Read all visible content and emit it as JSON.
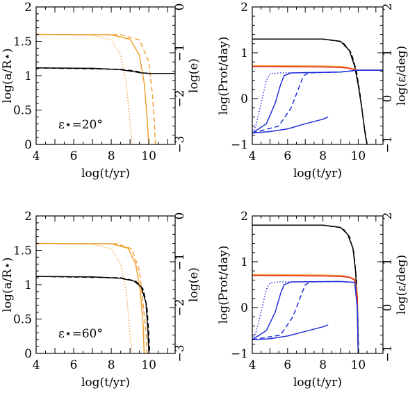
{
  "figure": {
    "colors": {
      "orange": "#f0a030",
      "black": "#000000",
      "blue": "#1f2fd8",
      "red": "#e8261c"
    },
    "panels": [
      {
        "id": "top-left",
        "annotation": "ε⋆=20°",
        "chart_data": {
          "type": "line",
          "xlabel": "log(t/yr)",
          "ylabel": "log(a/R⋆)",
          "y2label": "log(e)",
          "xlim": [
            4,
            11.4
          ],
          "ylim": [
            0,
            2
          ],
          "y2lim": [
            -3,
            0
          ],
          "xticks": [
            4,
            6,
            8,
            10
          ],
          "yticks": [
            0,
            0.5,
            1,
            1.5,
            2
          ],
          "y2ticks": [
            -3,
            -2,
            -1,
            0
          ],
          "series": [
            {
              "name": "a-dotted",
              "color": "orange",
              "style": "dotted",
              "axis": "y",
              "x": [
                4,
                7.0,
                8.0,
                8.5,
                8.8,
                9.0,
                9.1
              ],
              "y": [
                1.6,
                1.59,
                1.52,
                1.3,
                0.9,
                0.3,
                0
              ]
            },
            {
              "name": "a-solid",
              "color": "orange",
              "style": "solid",
              "axis": "y",
              "x": [
                4,
                8.0,
                9.0,
                9.5,
                9.75,
                9.9,
                10.0
              ],
              "y": [
                1.6,
                1.595,
                1.53,
                1.3,
                0.9,
                0.4,
                0
              ]
            },
            {
              "name": "a-dashed",
              "color": "orange",
              "style": "dashed",
              "axis": "y",
              "x": [
                4,
                8.5,
                9.5,
                10.0,
                10.2,
                10.3,
                10.35
              ],
              "y": [
                1.6,
                1.595,
                1.52,
                1.2,
                0.7,
                0.3,
                0
              ]
            },
            {
              "name": "e-solid",
              "color": "black",
              "style": "solid",
              "axis": "y2",
              "x": [
                4,
                7,
                8.5,
                9.2,
                9.6,
                10.0,
                11.4
              ],
              "y": [
                -1.33,
                -1.34,
                -1.37,
                -1.41,
                -1.44,
                -1.45,
                -1.45
              ]
            },
            {
              "name": "e-dashed",
              "color": "black",
              "style": "dashed",
              "axis": "y2",
              "x": [
                4,
                8.5,
                9.3,
                9.7,
                10.0,
                11.4
              ],
              "y": [
                -1.33,
                -1.36,
                -1.4,
                -1.44,
                -1.45,
                -1.45
              ]
            }
          ]
        }
      },
      {
        "id": "top-right",
        "chart_data": {
          "type": "line",
          "xlabel": "log(t/yr)",
          "ylabel": "log(Prot/day)",
          "y2label": "log(ε/deg)",
          "xlim": [
            4,
            11.4
          ],
          "ylim": [
            -1,
            2
          ],
          "y2lim": [
            -1,
            2
          ],
          "xticks": [
            4,
            6,
            8,
            10
          ],
          "yticks": [
            -1,
            0,
            1,
            2
          ],
          "y2ticks": [
            -1,
            0,
            1,
            2
          ],
          "series": [
            {
              "name": "prot-solid",
              "color": "black",
              "style": "solid",
              "axis": "y",
              "x": [
                4,
                8,
                9.0,
                9.5,
                9.8,
                10.0,
                10.2,
                10.4,
                10.5
              ],
              "y": [
                1.3,
                1.3,
                1.25,
                1.05,
                0.7,
                0.3,
                -0.2,
                -0.8,
                -1
              ]
            },
            {
              "name": "prot-dashed",
              "color": "black",
              "style": "dashed",
              "axis": "y",
              "x": [
                4,
                8,
                9.1,
                9.6,
                9.9,
                10.1,
                10.3,
                10.5
              ],
              "y": [
                1.3,
                1.3,
                1.24,
                1.0,
                0.6,
                0.1,
                -0.5,
                -1
              ]
            },
            {
              "name": "obliq-orange",
              "color": "orange",
              "style": "solid",
              "axis": "y2",
              "x": [
                4,
                8,
                9.0,
                9.5,
                9.8,
                10.0,
                10.2,
                11.4
              ],
              "y": [
                0.72,
                0.71,
                0.7,
                0.67,
                0.64,
                0.62,
                0.62,
                0.62
              ]
            },
            {
              "name": "obliq-red",
              "color": "red",
              "style": "solid",
              "axis": "y2",
              "x": [
                4,
                8,
                9.0,
                9.5,
                9.8,
                10.0,
                10.2,
                11.4
              ],
              "y": [
                0.7,
                0.69,
                0.68,
                0.66,
                0.63,
                0.62,
                0.62,
                0.62
              ]
            },
            {
              "name": "prot-blue-dotted",
              "color": "blue",
              "style": "dotted",
              "axis": "y",
              "x": [
                4,
                4.2,
                4.5,
                4.8,
                5.0,
                5.5,
                9.0,
                10.0,
                11.4
              ],
              "y": [
                -0.75,
                -0.6,
                -0.1,
                0.4,
                0.54,
                0.56,
                0.58,
                0.62,
                0.62
              ]
            },
            {
              "name": "prot-blue-solid",
              "color": "blue",
              "style": "solid",
              "axis": "y",
              "x": [
                4,
                4.8,
                5.3,
                5.6,
                5.8,
                6.2,
                9.0,
                10.0,
                11.4
              ],
              "y": [
                -0.75,
                -0.55,
                -0.1,
                0.3,
                0.5,
                0.56,
                0.58,
                0.62,
                0.62
              ]
            },
            {
              "name": "prot-blue-dashed",
              "color": "blue",
              "style": "dashed",
              "axis": "y",
              "x": [
                4,
                5.5,
                6.2,
                6.6,
                6.9,
                7.2,
                9.0,
                10.0,
                11.4
              ],
              "y": [
                -0.75,
                -0.6,
                -0.2,
                0.2,
                0.5,
                0.56,
                0.58,
                0.62,
                0.62
              ]
            },
            {
              "name": "prot-blue-lower",
              "color": "blue",
              "style": "solid",
              "axis": "y",
              "x": [
                4,
                5.0,
                6.0,
                7.0,
                8.0,
                8.3
              ],
              "y": [
                -0.75,
                -0.72,
                -0.66,
                -0.55,
                -0.45,
                -0.4
              ]
            }
          ]
        }
      },
      {
        "id": "bottom-left",
        "annotation": "ε⋆=60°",
        "chart_data": {
          "type": "line",
          "xlabel": "log(t/yr)",
          "ylabel": "log(a/R⋆)",
          "y2label": "log(e)",
          "xlim": [
            4,
            11.4
          ],
          "ylim": [
            0,
            2
          ],
          "y2lim": [
            -3,
            0
          ],
          "xticks": [
            4,
            6,
            8,
            10
          ],
          "yticks": [
            0,
            0.5,
            1,
            1.5,
            2
          ],
          "y2ticks": [
            -3,
            -2,
            -1,
            0
          ],
          "series": [
            {
              "name": "a-dotted",
              "color": "orange",
              "style": "dotted",
              "axis": "y",
              "x": [
                4,
                7.0,
                8.0,
                8.5,
                8.8,
                9.0,
                9.1
              ],
              "y": [
                1.6,
                1.59,
                1.52,
                1.3,
                0.9,
                0.3,
                0
              ]
            },
            {
              "name": "a-solid",
              "color": "orange",
              "style": "solid",
              "axis": "y",
              "x": [
                4,
                8.0,
                8.9,
                9.3,
                9.55,
                9.7,
                9.75
              ],
              "y": [
                1.6,
                1.595,
                1.53,
                1.3,
                0.9,
                0.4,
                0
              ]
            },
            {
              "name": "a-dashed",
              "color": "orange",
              "style": "dashed",
              "axis": "y",
              "x": [
                4,
                8.3,
                9.1,
                9.5,
                9.7,
                9.85,
                9.9
              ],
              "y": [
                1.6,
                1.595,
                1.52,
                1.2,
                0.7,
                0.3,
                0
              ]
            },
            {
              "name": "e-solid",
              "color": "black",
              "style": "solid",
              "axis": "y2",
              "x": [
                4,
                7,
                8.5,
                9.2,
                9.6,
                9.85,
                9.95,
                10.0
              ],
              "y": [
                -1.32,
                -1.33,
                -1.36,
                -1.42,
                -1.55,
                -1.9,
                -2.5,
                -3
              ]
            },
            {
              "name": "e-dashed",
              "color": "black",
              "style": "dashed",
              "axis": "y2",
              "x": [
                4,
                8.5,
                9.3,
                9.7,
                9.9,
                10.0,
                10.05
              ],
              "y": [
                -1.32,
                -1.35,
                -1.42,
                -1.6,
                -2.0,
                -2.6,
                -3
              ]
            }
          ]
        }
      },
      {
        "id": "bottom-right",
        "chart_data": {
          "type": "line",
          "xlabel": "log(t/yr)",
          "ylabel": "log(Prot/day)",
          "y2label": "log(ε/deg)",
          "xlim": [
            4,
            11.4
          ],
          "ylim": [
            -1,
            2
          ],
          "y2lim": [
            -1,
            2
          ],
          "xticks": [
            4,
            6,
            8,
            10
          ],
          "yticks": [
            -1,
            0,
            1,
            2
          ],
          "y2ticks": [
            -1,
            0,
            1,
            2
          ],
          "series": [
            {
              "name": "prot-solid",
              "color": "black",
              "style": "solid",
              "axis": "y",
              "x": [
                4,
                8,
                9.0,
                9.4,
                9.7,
                9.85,
                9.95,
                10.0
              ],
              "y": [
                1.8,
                1.8,
                1.75,
                1.6,
                1.3,
                0.8,
                0,
                -1
              ]
            },
            {
              "name": "prot-dashed",
              "color": "black",
              "style": "dashed",
              "axis": "y",
              "x": [
                4,
                8,
                9.1,
                9.5,
                9.75,
                9.9,
                9.98,
                10.02
              ],
              "y": [
                1.8,
                1.8,
                1.74,
                1.55,
                1.2,
                0.6,
                -0.2,
                -1
              ]
            },
            {
              "name": "obliq-orange",
              "color": "orange",
              "style": "solid",
              "axis": "y2",
              "x": [
                4,
                8,
                9.0,
                9.5,
                9.8,
                9.95,
                10.0
              ],
              "y": [
                0.72,
                0.71,
                0.7,
                0.67,
                0.62,
                0.3,
                -1
              ]
            },
            {
              "name": "obliq-red",
              "color": "red",
              "style": "solid",
              "axis": "y2",
              "x": [
                4,
                8,
                9.0,
                9.5,
                9.8,
                9.95,
                10.0
              ],
              "y": [
                0.7,
                0.69,
                0.68,
                0.66,
                0.6,
                0.2,
                -1
              ]
            },
            {
              "name": "prot-blue-dotted",
              "color": "blue",
              "style": "dotted",
              "axis": "y",
              "x": [
                4,
                4.2,
                4.5,
                4.8,
                5.0,
                5.5,
                9.0,
                9.8,
                9.95,
                10.0
              ],
              "y": [
                -0.7,
                -0.55,
                -0.1,
                0.4,
                0.54,
                0.56,
                0.57,
                0.55,
                0.0,
                -1
              ]
            },
            {
              "name": "prot-blue-solid",
              "color": "blue",
              "style": "solid",
              "axis": "y",
              "x": [
                4,
                4.8,
                5.3,
                5.6,
                5.8,
                6.2,
                9.0,
                9.8,
                9.95,
                10.0
              ],
              "y": [
                -0.7,
                -0.5,
                -0.1,
                0.3,
                0.5,
                0.56,
                0.57,
                0.55,
                0.0,
                -1
              ]
            },
            {
              "name": "prot-blue-dashed",
              "color": "blue",
              "style": "dashed",
              "axis": "y",
              "x": [
                4,
                5.6,
                6.3,
                6.7,
                7.0,
                7.3,
                9.0,
                9.8,
                9.95,
                10.0
              ],
              "y": [
                -0.7,
                -0.6,
                -0.2,
                0.2,
                0.5,
                0.56,
                0.57,
                0.55,
                0.0,
                -1
              ]
            },
            {
              "name": "prot-blue-lower",
              "color": "blue",
              "style": "solid",
              "axis": "y",
              "x": [
                4,
                5.0,
                6.0,
                7.0,
                8.0,
                8.3
              ],
              "y": [
                -0.7,
                -0.68,
                -0.62,
                -0.52,
                -0.42,
                -0.38
              ]
            }
          ]
        }
      }
    ]
  }
}
